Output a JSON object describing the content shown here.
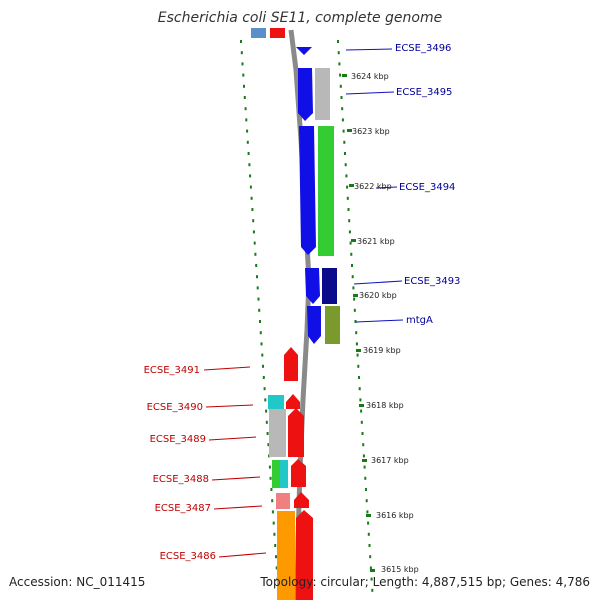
{
  "title": "Escherichia coli SE11, complete genome",
  "footer": {
    "accession": "Accession: NC_011415",
    "topology": "Topology: circular; Length: 4,887,515 bp; Genes: 4,786"
  },
  "colors": {
    "forward_label": "#00009a",
    "reverse_label": "#c00000",
    "backbone": "#888888",
    "tick": "#1a7a1a"
  },
  "ticks": [
    "3624 kbp",
    "3623 kbp",
    "3622 kbp",
    "3621 kbp",
    "3620 kbp",
    "3619 kbp",
    "3618 kbp",
    "3617 kbp",
    "3616 kbp",
    "3615 kbp"
  ],
  "forward_labels": [
    "ECSE_3496",
    "ECSE_3495",
    "ECSE_3494",
    "ECSE_3493",
    "mtgA"
  ],
  "reverse_labels": [
    "ECSE_3491",
    "ECSE_3490",
    "ECSE_3489",
    "ECSE_3488",
    "ECSE_3487",
    "ECSE_3486"
  ]
}
